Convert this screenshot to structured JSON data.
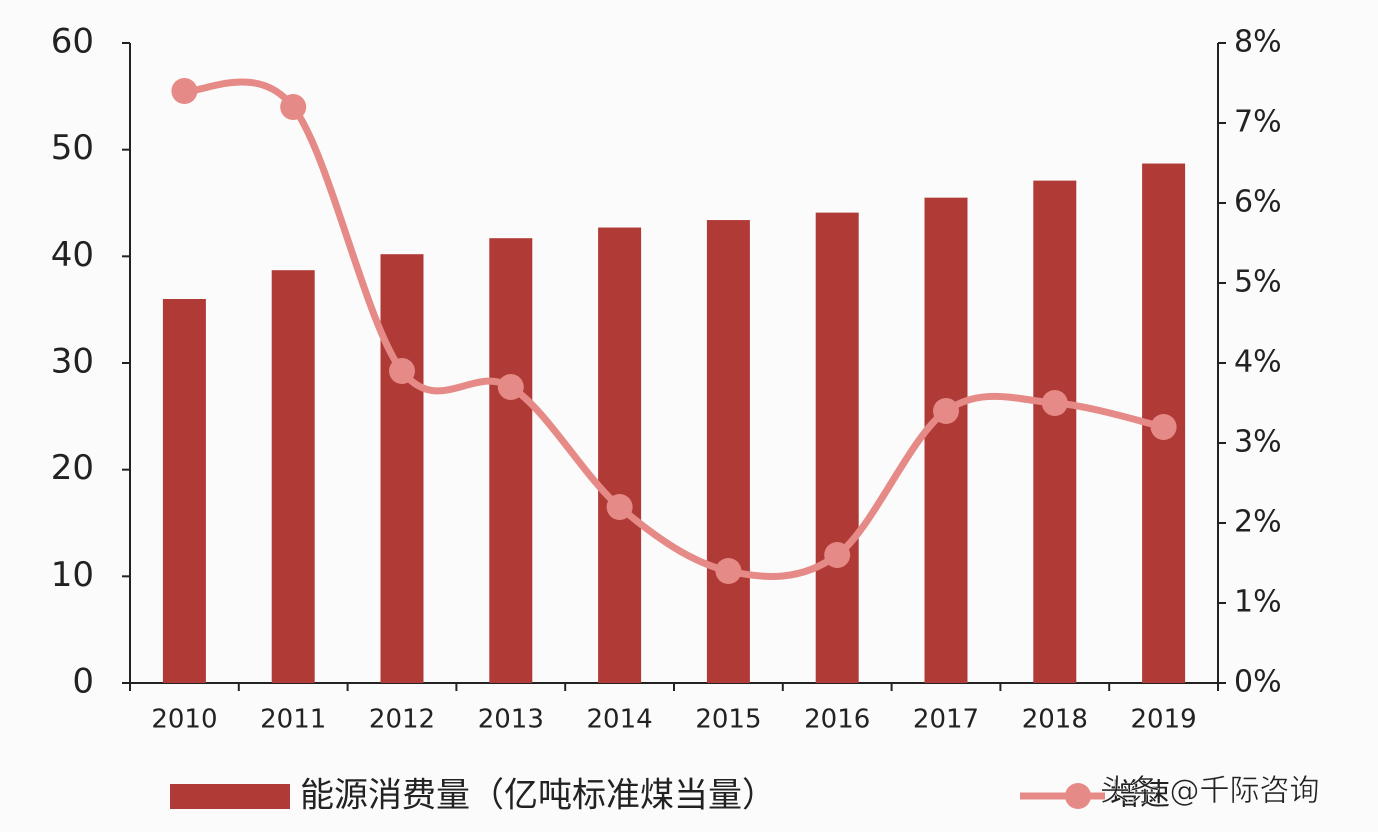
{
  "chart_data": {
    "type": "bar_line",
    "categories": [
      "2010",
      "2011",
      "2012",
      "2013",
      "2014",
      "2015",
      "2016",
      "2017",
      "2018",
      "2019"
    ],
    "series": [
      {
        "name": "能源消费量（亿吨标准煤当量）",
        "type": "bar",
        "color": "#b03a36",
        "values": [
          36.0,
          38.7,
          40.2,
          41.7,
          42.7,
          43.4,
          44.1,
          45.5,
          47.1,
          48.7
        ]
      },
      {
        "name": "增速",
        "type": "line",
        "axis": "y2",
        "color": "#e58a86",
        "values": [
          7.4,
          7.2,
          3.9,
          3.7,
          2.2,
          1.4,
          1.6,
          3.4,
          3.5,
          3.2
        ]
      }
    ],
    "ylim": [
      0,
      60
    ],
    "yticks": [
      0,
      10,
      20,
      30,
      40,
      50,
      60
    ],
    "y2lim": [
      0,
      8
    ],
    "y2ticks": [
      {
        "value": 0,
        "label": "0%"
      },
      {
        "value": 1,
        "label": "1%"
      },
      {
        "value": 2,
        "label": "2%"
      },
      {
        "value": 3,
        "label": "3%"
      },
      {
        "value": 4,
        "label": "4%"
      },
      {
        "value": 5,
        "label": "5%"
      },
      {
        "value": 6,
        "label": "6%"
      },
      {
        "value": 7,
        "label": "7%"
      },
      {
        "value": 8,
        "label": "8%"
      }
    ],
    "grid": false,
    "legend": "bottom",
    "watermark": "头条 @千际咨询"
  }
}
